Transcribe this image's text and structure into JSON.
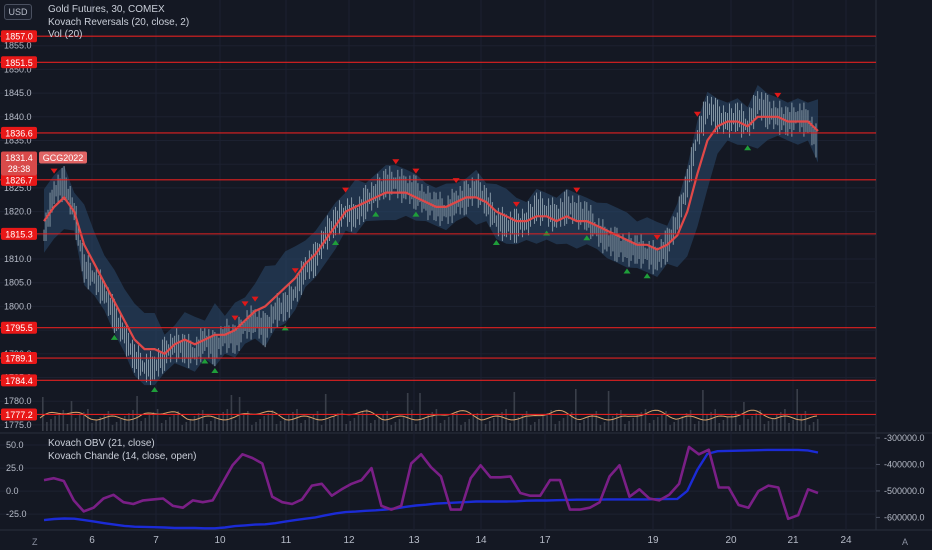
{
  "symbol": {
    "currency": "USD",
    "title": "Gold Futures, 30, COMEX",
    "indicators_main": [
      "Kovach Reversals (20, close, 2)",
      "Vol (20)"
    ],
    "indicators_sub": [
      "Kovach OBV (21, close)",
      "Kovach Chande (14, close, open)"
    ]
  },
  "price_badge": {
    "price": "1831.4",
    "countdown": "28:38",
    "contract": "GCG2022"
  },
  "colors": {
    "background": "#141823",
    "level_line": "#e02020",
    "level_badge": "#e81818",
    "ma": "#e04848",
    "band_fill": "#2a4a6e",
    "candle": "#8fa1ae",
    "up_marker": "#1f9e3a",
    "down_marker": "#e01818",
    "volume": "#3a3f4a",
    "volume_line": "#d9a36b",
    "obv": "#1b2bd6",
    "chande": "#7a1f86"
  },
  "chart_data": [
    {
      "type": "line",
      "title": "",
      "y_ticks": [
        "1855.0",
        "1850.0",
        "1845.0",
        "1840.0",
        "1835.0",
        "1830.0",
        "1825.0",
        "1820.0",
        "1815.0",
        "1810.0",
        "1805.0",
        "1800.0",
        "1795.0",
        "1790.0",
        "1785.0",
        "1780.0",
        "1775.0"
      ],
      "ylim": [
        1773.5,
        1860.0
      ],
      "x_ticks": [
        "6",
        "7",
        "10",
        "11",
        "12",
        "13",
        "14",
        "17",
        "19",
        "20",
        "21",
        "24"
      ],
      "horizontal_levels": [
        "1857.0",
        "1851.5",
        "1836.6",
        "1826.7",
        "1815.3",
        "1795.5",
        "1789.1",
        "1784.4",
        "1777.2"
      ],
      "series": [
        {
          "values": [
            1815,
            1824,
            1826,
            1820,
            1808,
            1806,
            1803,
            1798,
            1794,
            1789,
            1787,
            1787,
            1790,
            1792,
            1791,
            1790,
            1793,
            1791,
            1794,
            1793,
            1796,
            1797,
            1795,
            1799,
            1800,
            1803,
            1808,
            1810,
            1815,
            1818,
            1820,
            1819,
            1822,
            1824,
            1826,
            1826,
            1825,
            1824,
            1822,
            1821,
            1820,
            1822,
            1823,
            1825,
            1822,
            1818,
            1817,
            1817,
            1818,
            1821,
            1820,
            1819,
            1821,
            1820,
            1819,
            1816,
            1814,
            1813,
            1812,
            1812,
            1811,
            1810,
            1813,
            1818,
            1826,
            1836,
            1842,
            1840,
            1839,
            1840,
            1838,
            1843,
            1841,
            1840,
            1839,
            1840,
            1839,
            1834
          ]
        },
        {
          "values": [
            1818,
            1821,
            1823,
            1820,
            1813,
            1809,
            1805,
            1801,
            1797,
            1793,
            1791,
            1791,
            1790,
            1792,
            1793,
            1792,
            1793,
            1794,
            1794,
            1795,
            1797,
            1799,
            1800,
            1802,
            1804,
            1806,
            1809,
            1811,
            1814,
            1817,
            1820,
            1821,
            1822,
            1823,
            1824,
            1824,
            1824,
            1823,
            1822,
            1821,
            1821,
            1822,
            1823,
            1823,
            1822,
            1820,
            1819,
            1818,
            1818,
            1819,
            1819,
            1818,
            1819,
            1818,
            1818,
            1817,
            1816,
            1815,
            1814,
            1813,
            1813,
            1812,
            1813,
            1815,
            1820,
            1828,
            1835,
            1838,
            1839,
            1839,
            1838,
            1840,
            1840,
            1840,
            1839,
            1839,
            1839,
            1837
          ]
        }
      ]
    },
    {
      "type": "line",
      "title": "",
      "y_ticks_left": [
        "50.0",
        "25.0",
        "0.0",
        "-25.0"
      ],
      "ylim_left": [
        -40,
        62
      ],
      "y_ticks_right": [
        "-300000.0",
        "-400000.0",
        "-500000.0",
        "-600000.0"
      ],
      "ylim_right": [
        -640000,
        -285000
      ],
      "series": [
        {
          "values": [
            -610000,
            -606000,
            -604000,
            -605000,
            -610000,
            -616000,
            -622000,
            -627000,
            -632000,
            -635000,
            -636000,
            -637000,
            -638000,
            -640000,
            -640000,
            -640000,
            -641000,
            -641000,
            -638000,
            -633000,
            -630000,
            -627000,
            -626000,
            -622000,
            -616000,
            -610000,
            -605000,
            -600000,
            -592000,
            -585000,
            -580000,
            -578000,
            -575000,
            -573000,
            -570000,
            -566000,
            -560000,
            -555000,
            -552000,
            -548000,
            -546000,
            -544000,
            -542000,
            -540000,
            -540000,
            -540000,
            -540000,
            -539000,
            -537000,
            -536000,
            -536000,
            -535000,
            -534000,
            -533000,
            -533000,
            -533000,
            -532000,
            -532000,
            -532000,
            -532000,
            -532000,
            -531000,
            -531000,
            -530000,
            -500000,
            -420000,
            -360000,
            -350000,
            -349000,
            -348000,
            -347000,
            -346000,
            -345000,
            -345000,
            -345000,
            -345000,
            -347000,
            -355000
          ]
        },
        {
          "values": [
            12,
            14,
            11,
            -10,
            -22,
            -18,
            -8,
            -4,
            -12,
            -14,
            -10,
            -9,
            -8,
            -16,
            -18,
            -10,
            -12,
            -10,
            9,
            28,
            40,
            36,
            30,
            -6,
            -12,
            -14,
            -9,
            6,
            8,
            -5,
            2,
            8,
            12,
            25,
            -16,
            -20,
            -16,
            30,
            40,
            26,
            16,
            -20,
            -20,
            14,
            28,
            15,
            15,
            16,
            -2,
            -5,
            -5,
            12,
            12,
            -20,
            -20,
            -18,
            -12,
            16,
            28,
            -6,
            2,
            -8,
            -10,
            -4,
            8,
            48,
            40,
            45,
            4,
            4,
            -15,
            -18,
            0,
            6,
            4,
            -30,
            -26,
            2,
            -2
          ]
        }
      ]
    }
  ]
}
